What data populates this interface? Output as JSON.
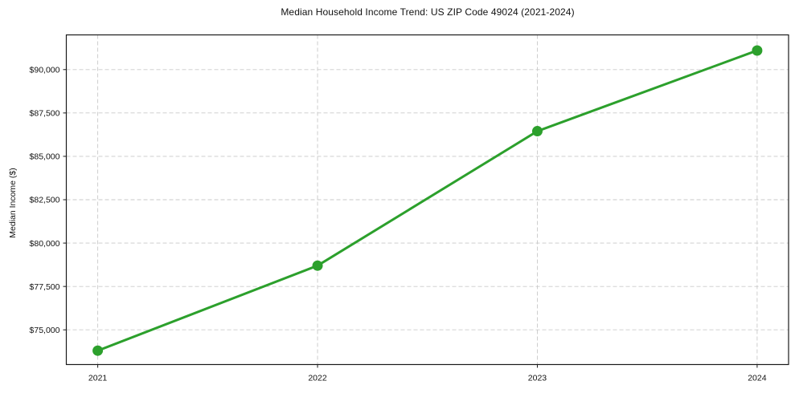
{
  "chart_data": {
    "type": "line",
    "title": "Median Household Income Trend: US ZIP Code 49024 (2021-2024)",
    "xlabel": "",
    "ylabel": "Median Income ($)",
    "x": [
      2021,
      2022,
      2023,
      2024
    ],
    "x_tick_labels": [
      "2021",
      "2022",
      "2023",
      "2024"
    ],
    "series": [
      {
        "name": "Median Household Income",
        "values": [
          73800,
          78700,
          86450,
          91100
        ]
      }
    ],
    "y_ticks": [
      75000,
      77500,
      80000,
      82500,
      85000,
      87500,
      90000
    ],
    "y_tick_labels": [
      "$75,000",
      "$77,500",
      "$80,000",
      "$82,500",
      "$85,000",
      "$87,500",
      "$90,000"
    ],
    "xlim": [
      2020.857,
      2024.143
    ],
    "ylim": [
      73000,
      92000
    ],
    "grid": true,
    "legend": "none",
    "colors": {
      "line": "#2ca02c",
      "marker": "#2ca02c",
      "gridline": "#c9c9c9",
      "spine": "#1a1a1a",
      "tick_text": "#111111"
    },
    "marker": "circle",
    "marker_radius": 6.5,
    "line_width": 3
  }
}
